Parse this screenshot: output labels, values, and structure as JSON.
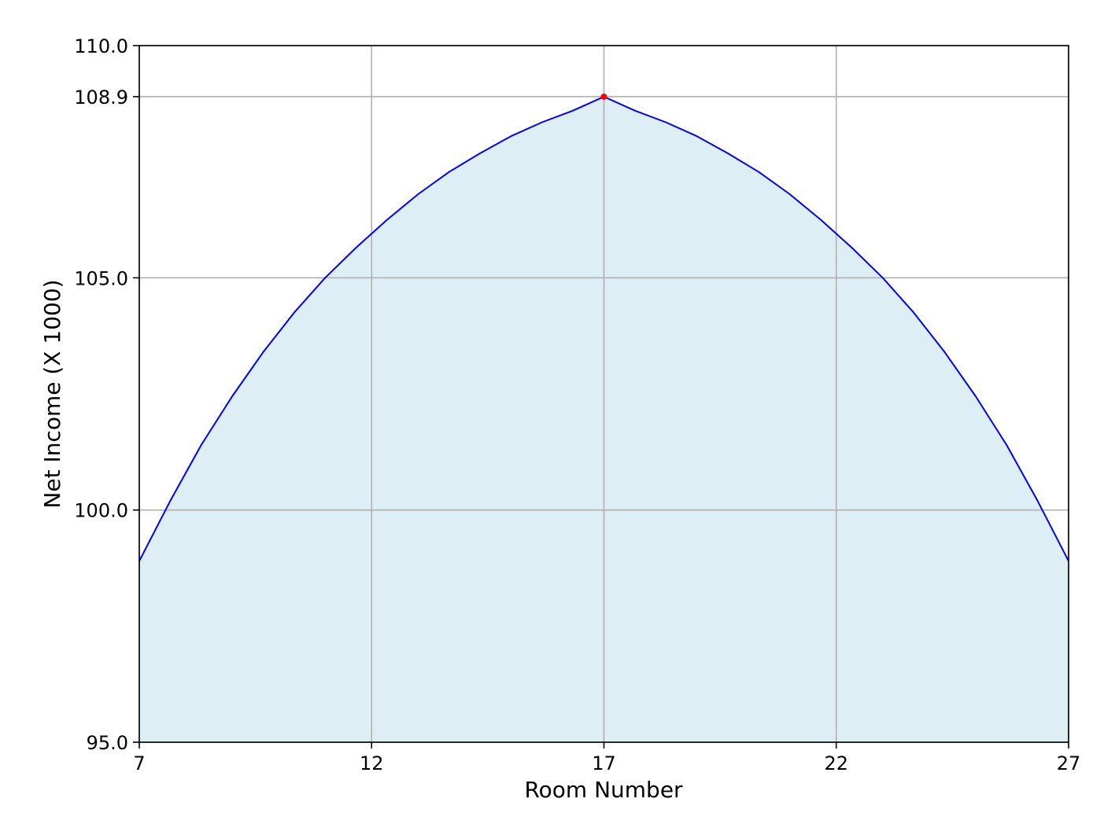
{
  "chart_data": {
    "type": "area",
    "title": "",
    "xlabel": "Room Number",
    "ylabel": "Net Income (X 1000)",
    "xlim": [
      7,
      27
    ],
    "ylim": [
      95.0,
      110.0
    ],
    "xticks": [
      "7",
      "12",
      "17",
      "22",
      "27"
    ],
    "yticks": [
      "95.0",
      "100.0",
      "105.0",
      "108.9",
      "110.0"
    ],
    "grid": true,
    "series": [
      {
        "x": [
          7.0,
          7.667,
          8.333,
          9.0,
          9.667,
          10.333,
          11.0,
          11.667,
          12.333,
          13.0,
          13.667,
          14.333,
          15.0,
          15.667,
          16.333,
          17.0,
          17.667,
          18.333,
          19.0,
          19.667,
          20.333,
          21.0,
          21.667,
          22.333,
          23.0,
          23.667,
          24.333,
          25.0,
          25.667,
          26.333,
          27.0
        ],
        "y": [
          98.9,
          100.2,
          101.4,
          102.45,
          103.4,
          104.25,
          105.0,
          105.65,
          106.25,
          106.8,
          107.28,
          107.68,
          108.05,
          108.35,
          108.6,
          108.9,
          108.6,
          108.35,
          108.05,
          107.68,
          107.28,
          106.8,
          106.25,
          105.65,
          105.0,
          104.25,
          103.4,
          102.45,
          101.4,
          100.2,
          98.9
        ]
      }
    ],
    "highlight_point": {
      "x": 17,
      "y": 108.9
    },
    "colors": {
      "line": "#0000ff",
      "fill": "#ddeef5",
      "marker": "#ff0000",
      "grid": "#b0b0b0",
      "axis": "#000000"
    }
  }
}
